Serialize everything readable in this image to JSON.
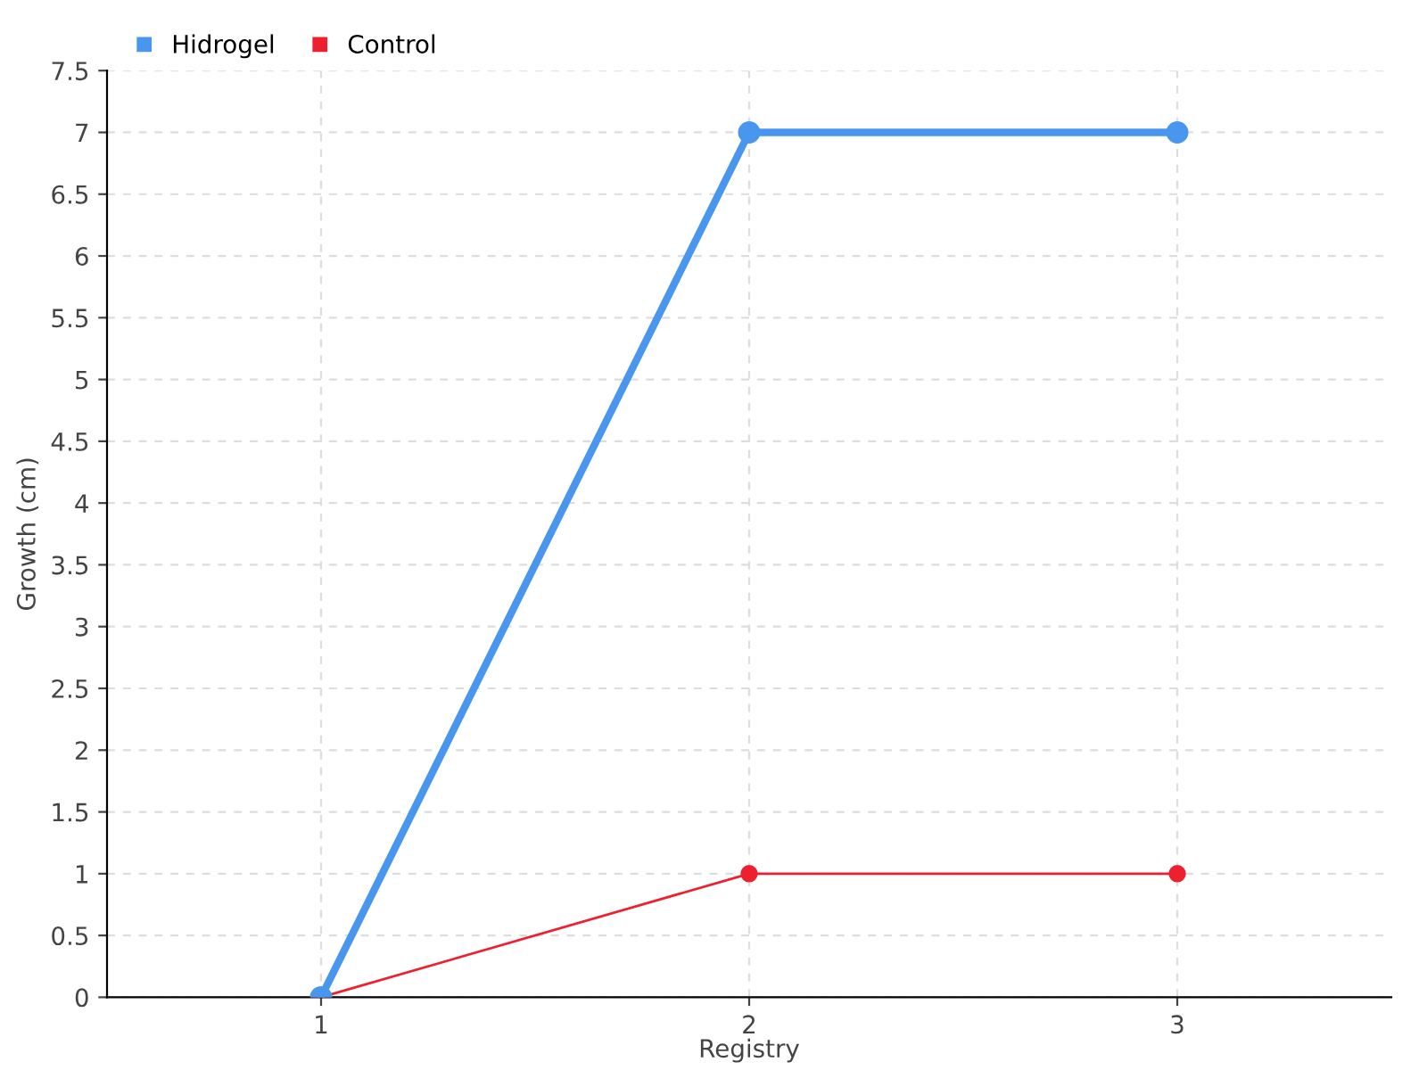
{
  "chart_data": {
    "type": "line",
    "xlabel": "Registry",
    "ylabel": "Growth (cm)",
    "categories": [
      "1",
      "2",
      "3"
    ],
    "series": [
      {
        "name": "Hidrogel",
        "color": "#4896ee",
        "values": [
          0,
          7,
          7
        ]
      },
      {
        "name": "Control",
        "color": "#ee2030",
        "values": [
          0,
          1,
          1
        ]
      }
    ],
    "ylim": [
      0,
      7.5
    ],
    "yticks": [
      0,
      0.5,
      1,
      1.5,
      2,
      2.5,
      3,
      3.5,
      4,
      4.5,
      5,
      5.5,
      6,
      6.5,
      7,
      7.5
    ],
    "grid": true,
    "legend": "top left",
    "marker": "circle",
    "line_style": "solid"
  }
}
